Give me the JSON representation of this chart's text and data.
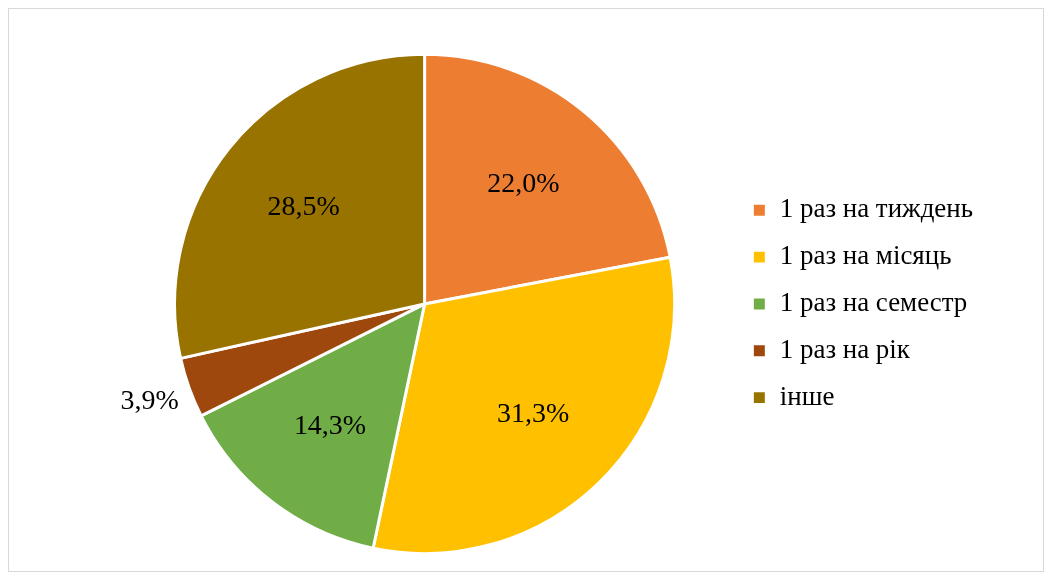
{
  "chart_data": {
    "type": "pie",
    "categories": [
      "1 раз на тиждень",
      "1 раз на місяць",
      "1 раз на семестр",
      "1 раз на рік",
      "інше"
    ],
    "values": [
      22.0,
      31.3,
      14.3,
      3.9,
      28.5
    ],
    "value_labels": [
      "22,0%",
      "31,3%",
      "14,3%",
      "3,9%",
      "28,5%"
    ],
    "colors": [
      "#ed7d31",
      "#ffc000",
      "#70ad47",
      "#9e480e",
      "#997300"
    ],
    "legend": "right"
  }
}
